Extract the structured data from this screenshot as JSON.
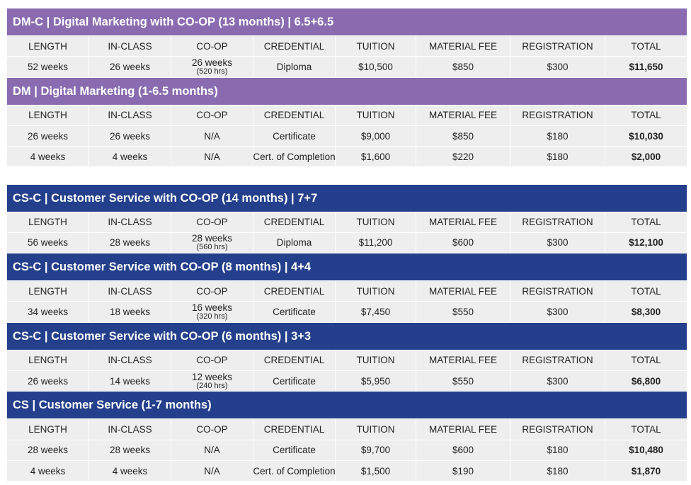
{
  "sections": [
    {
      "title": "DM-C | Digital Marketing with CO-OP (13 months) | 6.5+6.5",
      "color": "#8a6bb0",
      "columns": [
        "LENGTH",
        "IN-CLASS",
        "CO-OP",
        "CREDENTIAL",
        "TUITION",
        "MATERIAL FEE",
        "REGISTRATION",
        "TOTAL"
      ],
      "rows": [
        [
          "52 weeks",
          "26 weeks",
          [
            "26 weeks",
            "(520 hrs)"
          ],
          "Diploma",
          "$10,500",
          "$850",
          "$300",
          "$11,650"
        ]
      ]
    },
    {
      "title": "DM | Digital Marketing (1-6.5 months)",
      "color": "#8a6bb0",
      "columns": [
        "LENGTH",
        "IN-CLASS",
        "CO-OP",
        "CREDENTIAL",
        "TUITION",
        "MATERIAL FEE",
        "REGISTRATION",
        "TOTAL"
      ],
      "rows": [
        [
          "26 weeks",
          "26 weeks",
          "N/A",
          "Certificate",
          "$9,000",
          "$850",
          "$180",
          "$10,030"
        ],
        [
          "4 weeks",
          "4 weeks",
          "N/A",
          "Cert. of Completion",
          "$1,600",
          "$220",
          "$180",
          "$2,000"
        ]
      ]
    },
    {
      "title": "CS-C | Customer Service with CO-OP (14 months) | 7+7",
      "color": "#24408c",
      "columns": [
        "LENGTH",
        "IN-CLASS",
        "CO-OP",
        "CREDENTIAL",
        "TUITION",
        "MATERIAL FEE",
        "REGISTRATION",
        "TOTAL"
      ],
      "rows": [
        [
          "56 weeks",
          "28 weeks",
          [
            "28 weeks",
            "(560 hrs)"
          ],
          "Diploma",
          "$11,200",
          "$600",
          "$300",
          "$12,100"
        ]
      ]
    },
    {
      "title": "CS-C | Customer Service with CO-OP (8 months) | 4+4",
      "color": "#24408c",
      "columns": [
        "LENGTH",
        "IN-CLASS",
        "CO-OP",
        "CREDENTIAL",
        "TUITION",
        "MATERIAL FEE",
        "REGISTRATION",
        "TOTAL"
      ],
      "rows": [
        [
          "34 weeks",
          "18 weeks",
          [
            "16 weeks",
            "(320 hrs)"
          ],
          "Certificate",
          "$7,450",
          "$550",
          "$300",
          "$8,300"
        ]
      ]
    },
    {
      "title": "CS-C | Customer Service with CO-OP (6 months) | 3+3",
      "color": "#24408c",
      "columns": [
        "LENGTH",
        "IN-CLASS",
        "CO-OP",
        "CREDENTIAL",
        "TUITION",
        "MATERIAL FEE",
        "REGISTRATION",
        "TOTAL"
      ],
      "rows": [
        [
          "26 weeks",
          "14 weeks",
          [
            "12 weeks",
            "(240 hrs)"
          ],
          "Certificate",
          "$5,950",
          "$550",
          "$300",
          "$6,800"
        ]
      ]
    },
    {
      "title": "CS | Customer Service (1-7 months)",
      "color": "#24408c",
      "columns": [
        "LENGTH",
        "IN-CLASS",
        "CO-OP",
        "CREDENTIAL",
        "TUITION",
        "MATERIAL FEE",
        "REGISTRATION",
        "TOTAL"
      ],
      "rows": [
        [
          "28 weeks",
          "28 weeks",
          "N/A",
          "Certificate",
          "$9,700",
          "$600",
          "$180",
          "$10,480"
        ],
        [
          "4 weeks",
          "4 weeks",
          "N/A",
          "Cert. of Completion",
          "$1,500",
          "$190",
          "$180",
          "$1,870"
        ]
      ]
    }
  ]
}
